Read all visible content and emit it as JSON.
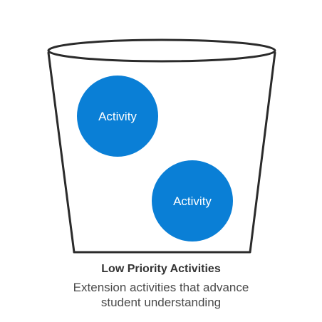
{
  "bucket": {
    "title": "Low Priority Activities",
    "description_line1": "Extension activities that advance",
    "description_line2": "student understanding"
  },
  "activities": [
    {
      "label": "Activity"
    },
    {
      "label": "Activity"
    }
  ],
  "colors": {
    "activity_fill": "#0a7fd6",
    "outline": "#2b2b2b",
    "text": "#333333"
  }
}
